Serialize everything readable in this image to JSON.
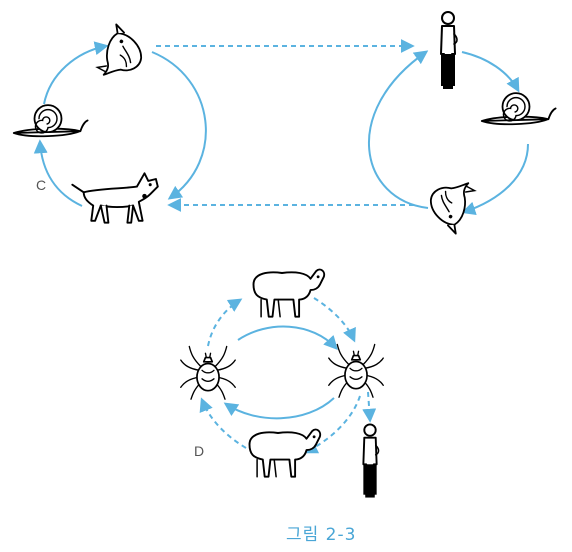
{
  "panel_c": {
    "label": "C"
  },
  "panel_d": {
    "label": "D"
  },
  "caption": "그림 2-3",
  "colors": {
    "arrow": "#5bb3e0",
    "caption": "#4aa6d6",
    "ink": "#000000"
  },
  "icons": [
    "fish-icon",
    "snail-icon",
    "dog-icon",
    "human-icon",
    "sheep-icon",
    "tick-icon"
  ]
}
